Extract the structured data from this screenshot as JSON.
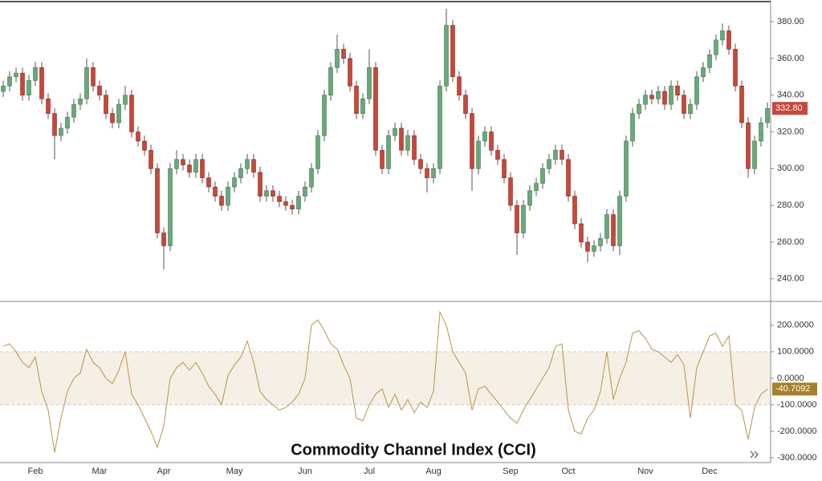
{
  "chart_data": {
    "type": "candlestick",
    "categories": [
      null,
      null,
      null,
      null,
      null,
      "Feb",
      null,
      null,
      null,
      null,
      null,
      null,
      null,
      null,
      null,
      "Mar",
      null,
      null,
      null,
      null,
      null,
      null,
      null,
      null,
      null,
      "Apr",
      null,
      null,
      null,
      null,
      null,
      null,
      null,
      null,
      null,
      null,
      "May",
      null,
      null,
      null,
      null,
      null,
      null,
      null,
      null,
      null,
      null,
      "Jun",
      null,
      null,
      null,
      null,
      null,
      null,
      null,
      null,
      null,
      "Jul",
      null,
      null,
      null,
      null,
      null,
      null,
      null,
      null,
      null,
      "Aug",
      null,
      null,
      null,
      null,
      null,
      null,
      null,
      null,
      null,
      null,
      null,
      "Sep",
      null,
      null,
      null,
      null,
      null,
      null,
      null,
      null,
      "Oct",
      null,
      null,
      null,
      null,
      null,
      null,
      null,
      null,
      null,
      null,
      null,
      "Nov",
      null,
      null,
      null,
      null,
      null,
      null,
      null,
      null,
      null,
      "Dec",
      null,
      null,
      null,
      null,
      null,
      null,
      null,
      null,
      null
    ],
    "open": [
      342,
      345,
      350,
      352,
      340,
      348,
      355,
      338,
      330,
      318,
      322,
      328,
      335,
      338,
      355,
      345,
      340,
      330,
      325,
      335,
      340,
      320,
      315,
      310,
      300,
      265,
      258,
      300,
      305,
      302,
      298,
      305,
      295,
      290,
      285,
      280,
      290,
      295,
      300,
      305,
      298,
      285,
      288,
      285,
      282,
      280,
      278,
      285,
      290,
      300,
      318,
      340,
      355,
      365,
      360,
      345,
      330,
      338,
      355,
      310,
      300,
      318,
      322,
      310,
      318,
      305,
      300,
      295,
      300,
      345,
      378,
      350,
      340,
      330,
      300,
      315,
      320,
      310,
      305,
      295,
      280,
      265,
      280,
      288,
      292,
      300,
      305,
      310,
      305,
      285,
      270,
      260,
      255,
      258,
      262,
      275,
      258,
      285,
      315,
      330,
      335,
      340,
      338,
      342,
      335,
      345,
      340,
      330,
      335,
      350,
      355,
      362,
      370,
      375,
      365,
      345,
      325,
      300,
      315,
      325
    ],
    "high": [
      348,
      353,
      355,
      355,
      351,
      358,
      358,
      341,
      333,
      325,
      331,
      338,
      341,
      360,
      358,
      348,
      343,
      333,
      338,
      345,
      343,
      323,
      318,
      313,
      303,
      268,
      303,
      310,
      308,
      305,
      308,
      308,
      298,
      293,
      288,
      293,
      298,
      303,
      308,
      308,
      301,
      291,
      291,
      288,
      285,
      283,
      288,
      293,
      303,
      321,
      343,
      358,
      373,
      368,
      363,
      348,
      341,
      365,
      358,
      313,
      321,
      325,
      325,
      321,
      321,
      308,
      303,
      303,
      348,
      387,
      381,
      353,
      343,
      333,
      318,
      323,
      323,
      313,
      308,
      298,
      283,
      283,
      291,
      295,
      303,
      308,
      313,
      313,
      308,
      288,
      273,
      263,
      261,
      265,
      278,
      278,
      288,
      318,
      333,
      338,
      343,
      343,
      345,
      345,
      348,
      348,
      343,
      338,
      353,
      358,
      365,
      373,
      379,
      378,
      368,
      348,
      328,
      318,
      328,
      336
    ],
    "low": [
      339,
      342,
      347,
      337,
      337,
      345,
      335,
      327,
      305,
      315,
      319,
      325,
      332,
      335,
      342,
      337,
      327,
      322,
      322,
      332,
      317,
      312,
      307,
      297,
      262,
      245,
      255,
      297,
      299,
      295,
      295,
      292,
      287,
      282,
      277,
      277,
      287,
      292,
      297,
      295,
      282,
      282,
      282,
      279,
      277,
      275,
      275,
      282,
      287,
      297,
      315,
      337,
      352,
      357,
      342,
      327,
      327,
      335,
      307,
      297,
      297,
      315,
      307,
      307,
      302,
      297,
      287,
      292,
      297,
      342,
      347,
      337,
      327,
      288,
      297,
      312,
      307,
      302,
      292,
      277,
      253,
      262,
      277,
      285,
      289,
      297,
      302,
      302,
      282,
      267,
      257,
      249,
      252,
      255,
      259,
      255,
      253,
      282,
      312,
      327,
      332,
      335,
      335,
      332,
      332,
      337,
      327,
      327,
      332,
      347,
      352,
      359,
      367,
      362,
      342,
      322,
      295,
      297,
      312,
      322
    ],
    "close": [
      345,
      350,
      352,
      340,
      348,
      355,
      338,
      330,
      318,
      322,
      328,
      335,
      338,
      355,
      345,
      340,
      330,
      325,
      335,
      340,
      320,
      315,
      310,
      300,
      265,
      258,
      300,
      305,
      302,
      298,
      305,
      295,
      290,
      285,
      280,
      290,
      295,
      300,
      305,
      298,
      285,
      288,
      285,
      282,
      280,
      278,
      285,
      290,
      300,
      318,
      340,
      355,
      365,
      360,
      345,
      330,
      338,
      355,
      310,
      300,
      318,
      322,
      310,
      318,
      305,
      300,
      295,
      300,
      345,
      378,
      350,
      340,
      330,
      300,
      315,
      320,
      310,
      305,
      295,
      280,
      265,
      280,
      288,
      292,
      300,
      305,
      310,
      305,
      285,
      270,
      260,
      255,
      258,
      262,
      275,
      258,
      285,
      315,
      330,
      335,
      340,
      338,
      342,
      335,
      345,
      340,
      330,
      335,
      350,
      355,
      362,
      370,
      375,
      365,
      345,
      325,
      300,
      315,
      325,
      332.8
    ],
    "up_color": "#6aa87a",
    "down_color": "#c8473b",
    "last_label": "332.80",
    "ylim": [
      227.7,
      391.8
    ],
    "yticks": [
      {
        "value": 240,
        "label": "240.00"
      },
      {
        "value": 260,
        "label": "260.00"
      },
      {
        "value": 280,
        "label": "280.00"
      },
      {
        "value": 300,
        "label": "300.00"
      },
      {
        "value": 320,
        "label": "320.00"
      },
      {
        "value": 340,
        "label": "340.00"
      },
      {
        "value": 360,
        "label": "360.00"
      },
      {
        "value": 380,
        "label": "380.00"
      }
    ],
    "indicator": {
      "type": "line",
      "title": "Commodity Channel Index (CCI)",
      "color": "#b8944a",
      "values": [
        120,
        130,
        100,
        60,
        40,
        80,
        -50,
        -120,
        -280,
        -150,
        -50,
        0,
        20,
        110,
        60,
        40,
        0,
        -20,
        30,
        100,
        -60,
        -100,
        -150,
        -200,
        -260,
        -180,
        0,
        40,
        60,
        30,
        60,
        20,
        -30,
        -60,
        -100,
        10,
        50,
        80,
        140,
        60,
        -50,
        -80,
        -100,
        -120,
        -110,
        -90,
        -60,
        0,
        200,
        220,
        180,
        130,
        110,
        50,
        0,
        -150,
        -160,
        -100,
        -60,
        -40,
        -110,
        -60,
        -120,
        -80,
        -130,
        -90,
        -110,
        -50,
        250,
        200,
        100,
        60,
        20,
        -120,
        -40,
        -30,
        -60,
        -90,
        -120,
        -150,
        -170,
        -120,
        -80,
        -40,
        0,
        40,
        120,
        130,
        -120,
        -200,
        -210,
        -150,
        -120,
        -50,
        100,
        -80,
        0,
        60,
        170,
        180,
        150,
        110,
        100,
        80,
        60,
        90,
        50,
        -150,
        40,
        100,
        160,
        170,
        120,
        160,
        -100,
        -120,
        -230,
        -110,
        -60,
        -40.7092
      ],
      "band": [
        -100,
        100
      ],
      "last_label": "-40.7092",
      "ylim": [
        -318,
        290
      ],
      "yticks": [
        {
          "value": 200,
          "label": "200.0000"
        },
        {
          "value": 100,
          "label": "100.0000"
        },
        {
          "value": 0,
          "label": "0.0000"
        },
        {
          "value": -100,
          "label": "-100.0000"
        },
        {
          "value": -200,
          "label": "-200.0000"
        },
        {
          "value": -300,
          "label": "-300.0000"
        }
      ]
    }
  }
}
